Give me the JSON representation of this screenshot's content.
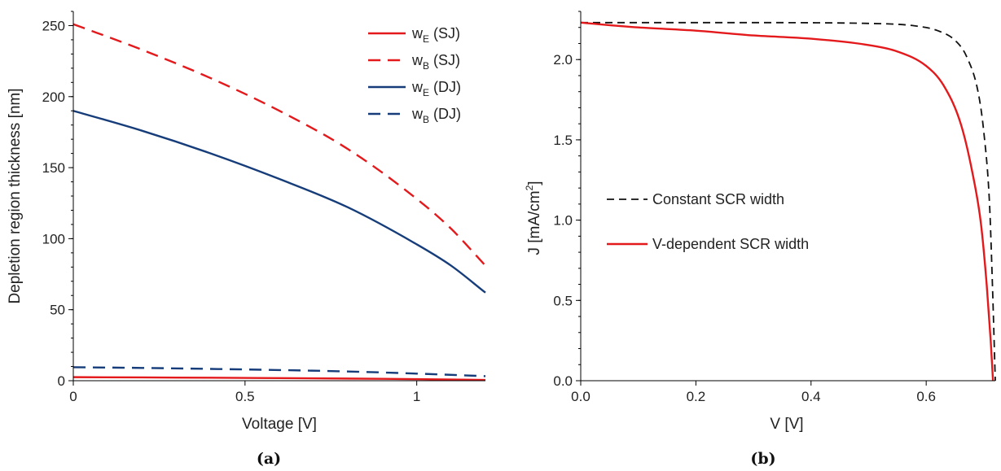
{
  "chart_data": [
    {
      "type": "line",
      "panel": "(a)",
      "xlabel": "Voltage [V]",
      "ylabel": "Depletion region thickness [nm]",
      "xlim": [
        0,
        1.2
      ],
      "ylim": [
        0,
        260
      ],
      "x_ticks": [
        0,
        0.5,
        1
      ],
      "x_tick_labels": [
        "0",
        "0.5",
        "1"
      ],
      "y_ticks": [
        0,
        50,
        100,
        150,
        200,
        250
      ],
      "y_tick_labels": [
        "0",
        "50",
        "100",
        "150",
        "200",
        "250"
      ],
      "legend_position": "top-right",
      "series": [
        {
          "name": "w",
          "sub": "E",
          "suffix": "(SJ)",
          "color": "#e3191c",
          "dash": "solid",
          "x": [
            0,
            0.2,
            0.4,
            0.6,
            0.8,
            1.0,
            1.2
          ],
          "y": [
            2.5,
            2.3,
            2.1,
            1.8,
            1.5,
            1.1,
            0.5
          ]
        },
        {
          "name": "w",
          "sub": "B",
          "suffix": "(SJ)",
          "color": "#e3191c",
          "dash": "dashed",
          "x": [
            0,
            0.2,
            0.4,
            0.6,
            0.8,
            1.0,
            1.1,
            1.2
          ],
          "y": [
            251,
            233,
            213,
            190,
            163,
            128,
            107,
            81
          ]
        },
        {
          "name": "w",
          "sub": "E",
          "suffix": "(DJ)",
          "color": "#163d7a",
          "dash": "solid",
          "x": [
            0,
            0.2,
            0.4,
            0.6,
            0.8,
            1.0,
            1.1,
            1.2
          ],
          "y": [
            190,
            176,
            160,
            142,
            122,
            96,
            81,
            62
          ]
        },
        {
          "name": "w",
          "sub": "B",
          "suffix": "(DJ)",
          "color": "#163d7a",
          "dash": "dashed",
          "x": [
            0,
            0.2,
            0.4,
            0.6,
            0.8,
            1.0,
            1.2
          ],
          "y": [
            9.5,
            9.0,
            8.3,
            7.5,
            6.5,
            5.0,
            3.2
          ]
        }
      ]
    },
    {
      "type": "line",
      "panel": "(b)",
      "xlabel": "V [V]",
      "ylabel": "J [mA/cm",
      "ylabel_sup": "2",
      "ylabel_end": "]",
      "xlim": [
        0,
        0.72
      ],
      "ylim": [
        0,
        2.3
      ],
      "x_ticks": [
        0,
        0.2,
        0.4,
        0.6
      ],
      "x_tick_labels": [
        "0.0",
        "0.2",
        "0.4",
        "0.6"
      ],
      "y_ticks": [
        0,
        0.5,
        1.0,
        1.5,
        2.0
      ],
      "y_tick_labels": [
        "0.0",
        "0.5",
        "1.0",
        "1.5",
        "2.0"
      ],
      "legend_position": "middle-left",
      "series": [
        {
          "name": "Constant SCR width",
          "color": "#111111",
          "dash": "dashed",
          "x": [
            0,
            0.3,
            0.5,
            0.58,
            0.62,
            0.65,
            0.67,
            0.69,
            0.7,
            0.71,
            0.715,
            0.72
          ],
          "y": [
            2.23,
            2.23,
            2.225,
            2.21,
            2.18,
            2.12,
            2.02,
            1.8,
            1.55,
            1.1,
            0.6,
            0.0
          ]
        },
        {
          "name": "V-dependent SCR width",
          "color": "#e3191c",
          "dash": "solid",
          "x": [
            0,
            0.1,
            0.2,
            0.3,
            0.4,
            0.5,
            0.55,
            0.6,
            0.63,
            0.66,
            0.68,
            0.695,
            0.705,
            0.712,
            0.716
          ],
          "y": [
            2.23,
            2.2,
            2.18,
            2.15,
            2.13,
            2.09,
            2.05,
            1.96,
            1.84,
            1.6,
            1.3,
            0.98,
            0.6,
            0.25,
            0.0
          ]
        }
      ]
    }
  ]
}
